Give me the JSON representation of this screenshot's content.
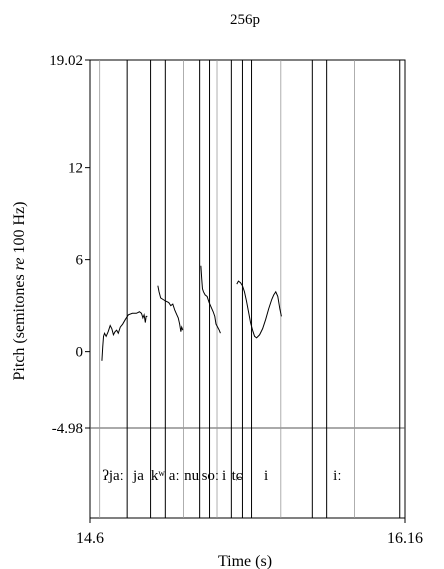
{
  "chart_data": {
    "type": "line",
    "title": "256p",
    "xlabel": "Time (s)",
    "ylabel_prefix": "Pitch (semitones ",
    "ylabel_italic": "re",
    "ylabel_suffix": " 100 Hz)",
    "xlim": [
      14.6,
      16.16
    ],
    "ylim": [
      -4.98,
      19.02
    ],
    "x_tick_labels": [
      "14.6",
      "16.16"
    ],
    "y_ticks": [
      {
        "value": 19.02,
        "label": "19.02"
      },
      {
        "value": 12,
        "label": "12"
      },
      {
        "value": 6,
        "label": "6"
      },
      {
        "value": 0,
        "label": "0"
      },
      {
        "value": -4.98,
        "label": "-4.98"
      }
    ],
    "boundaries": [
      14.648,
      14.784,
      14.9,
      14.973,
      15.063,
      15.143,
      15.192,
      15.229,
      15.3,
      15.355,
      15.4,
      15.545,
      15.701,
      15.772,
      15.91,
      16.134
    ],
    "boundary_light": [
      14.648,
      15.063,
      15.229,
      15.545,
      15.91
    ],
    "segments": [
      {
        "label": "ʔjaː",
        "x": 14.714
      },
      {
        "label": "ja",
        "x": 14.84
      },
      {
        "label": "kʷ",
        "x": 14.936
      },
      {
        "label": "aː",
        "x": 15.017
      },
      {
        "label": "nu",
        "x": 15.103
      },
      {
        "label": "s",
        "x": 15.167
      },
      {
        "label": "oː",
        "x": 15.21
      },
      {
        "label": "i",
        "x": 15.264
      },
      {
        "label": "tɕ",
        "x": 15.328
      },
      {
        "label": "i",
        "x": 15.472
      },
      {
        "label": "iː",
        "x": 15.825
      }
    ],
    "series": [
      {
        "points": [
          [
            14.659,
            -0.6
          ],
          [
            14.663,
            0.3
          ],
          [
            14.667,
            1.0
          ],
          [
            14.672,
            1.2
          ],
          [
            14.68,
            1.0
          ],
          [
            14.69,
            1.3
          ],
          [
            14.7,
            1.7
          ],
          [
            14.708,
            1.5
          ],
          [
            14.716,
            1.1
          ],
          [
            14.724,
            1.3
          ],
          [
            14.732,
            1.4
          ],
          [
            14.74,
            1.2
          ],
          [
            14.75,
            1.6
          ],
          [
            14.762,
            1.8
          ],
          [
            14.775,
            2.1
          ],
          [
            14.79,
            2.4
          ],
          [
            14.81,
            2.5
          ],
          [
            14.83,
            2.5
          ],
          [
            14.845,
            2.6
          ],
          [
            14.855,
            2.5
          ],
          [
            14.862,
            2.2
          ],
          [
            14.868,
            2.4
          ],
          [
            14.874,
            1.9
          ],
          [
            14.878,
            2.3
          ],
          [
            14.884,
            2.3
          ]
        ]
      },
      {
        "points": [
          [
            14.936,
            4.3
          ],
          [
            14.942,
            3.9
          ],
          [
            14.95,
            3.5
          ],
          [
            14.962,
            3.4
          ],
          [
            14.975,
            3.3
          ],
          [
            14.99,
            3.2
          ],
          [
            15.0,
            3.0
          ],
          [
            15.01,
            3.1
          ],
          [
            15.02,
            2.7
          ],
          [
            15.03,
            2.4
          ],
          [
            15.037,
            2.2
          ],
          [
            15.044,
            1.8
          ],
          [
            15.05,
            1.3
          ],
          [
            15.054,
            1.6
          ],
          [
            15.06,
            1.4
          ]
        ]
      },
      {
        "points": [
          [
            15.149,
            5.6
          ],
          [
            15.153,
            4.8
          ],
          [
            15.157,
            4.1
          ],
          [
            15.162,
            3.9
          ],
          [
            15.17,
            3.7
          ],
          [
            15.18,
            3.6
          ],
          [
            15.19,
            3.2
          ],
          [
            15.2,
            2.9
          ],
          [
            15.21,
            2.6
          ],
          [
            15.218,
            2.3
          ],
          [
            15.224,
            1.8
          ],
          [
            15.232,
            1.6
          ],
          [
            15.24,
            1.4
          ],
          [
            15.246,
            1.2
          ]
        ]
      },
      {
        "points": [
          [
            15.327,
            4.4
          ],
          [
            15.335,
            4.6
          ],
          [
            15.345,
            4.5
          ],
          [
            15.355,
            4.3
          ],
          [
            15.365,
            3.9
          ],
          [
            15.375,
            3.3
          ],
          [
            15.385,
            2.6
          ],
          [
            15.395,
            1.9
          ],
          [
            15.405,
            1.4
          ],
          [
            15.415,
            1.0
          ],
          [
            15.425,
            0.9
          ],
          [
            15.44,
            1.1
          ],
          [
            15.455,
            1.5
          ],
          [
            15.47,
            2.1
          ],
          [
            15.485,
            2.8
          ],
          [
            15.5,
            3.4
          ],
          [
            15.51,
            3.7
          ],
          [
            15.52,
            3.9
          ],
          [
            15.53,
            3.6
          ],
          [
            15.54,
            2.8
          ],
          [
            15.548,
            2.3
          ]
        ]
      }
    ]
  }
}
